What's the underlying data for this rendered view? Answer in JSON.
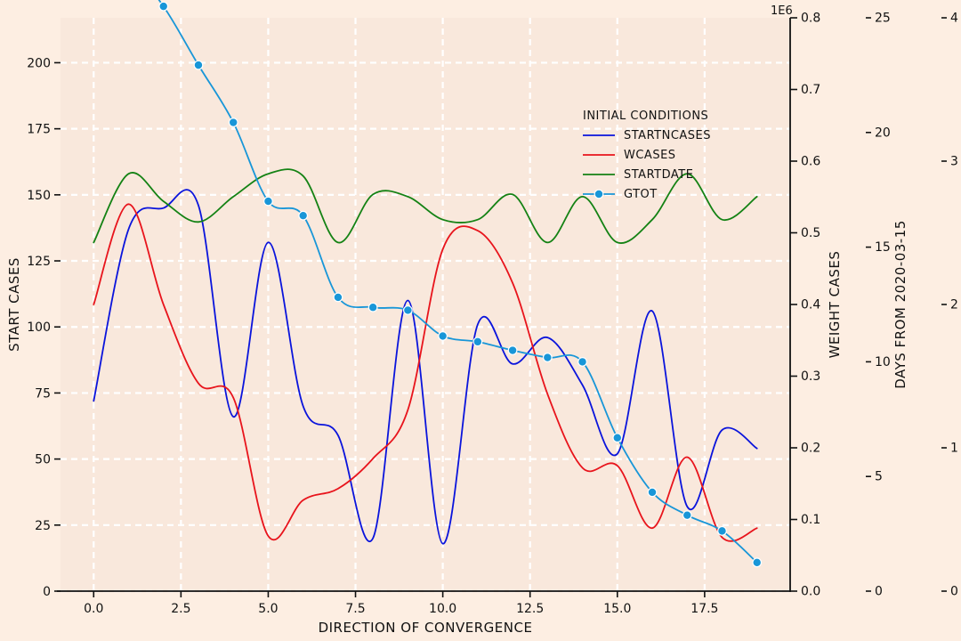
{
  "chart_data": {
    "type": "line",
    "x": [
      0,
      1,
      2,
      3,
      4,
      5,
      6,
      7,
      8,
      9,
      10,
      11,
      12,
      13,
      14,
      15,
      16,
      17,
      18,
      19
    ],
    "xlabel": "DIRECTION OF CONVERGENCE",
    "xlim": [
      -0.95,
      19.95
    ],
    "xticks": [
      "0.0",
      "2.5",
      "5.0",
      "7.5",
      "10.0",
      "12.5",
      "15.0",
      "17.5"
    ],
    "grid": true,
    "legend": {
      "title": "INITIAL CONDITIONS",
      "placement": "upper-center-right",
      "entries": [
        "STARTNCASES",
        "WCASES",
        "STARTDATE",
        "GTOT"
      ]
    },
    "axes": [
      {
        "id": "left",
        "label": "START CASES",
        "ylim": [
          0,
          217
        ],
        "ticks": [
          "0",
          "25",
          "50",
          "75",
          "100",
          "125",
          "150",
          "175",
          "200"
        ]
      },
      {
        "id": "right1",
        "label": "WEIGHT CASES",
        "offset_label": "1E6",
        "ylim": [
          0,
          0.8
        ],
        "ticks": [
          "0.0",
          "0.1",
          "0.2",
          "0.3",
          "0.4",
          "0.5",
          "0.6",
          "0.7",
          "0.8"
        ]
      },
      {
        "id": "right2",
        "label": "DAYS FROM 2020-03-15",
        "ylim": [
          0,
          25
        ],
        "ticks": [
          "0",
          "5",
          "10",
          "15",
          "20",
          "25"
        ]
      },
      {
        "id": "right3",
        "label": "GTOT",
        "ylim": [
          0,
          4
        ],
        "ticks": [
          "0",
          "1",
          "2",
          "3",
          "4"
        ]
      }
    ],
    "series": [
      {
        "name": "STARTNCASES",
        "axis": "left",
        "color": "#0a14dc",
        "markers": false,
        "values": [
          72,
          137,
          145,
          146,
          66,
          132,
          70,
          59,
          20,
          110,
          18,
          101,
          86,
          96,
          78,
          52,
          106,
          32,
          61,
          54
        ]
      },
      {
        "name": "WCASES",
        "axis": "right1",
        "color": "#e8141c",
        "markers": false,
        "values": [
          0.4,
          0.54,
          0.4,
          0.29,
          0.27,
          0.077,
          0.127,
          0.143,
          0.185,
          0.253,
          0.477,
          0.503,
          0.43,
          0.275,
          0.172,
          0.175,
          0.088,
          0.187,
          0.075,
          0.088
        ]
      },
      {
        "name": "STARTDATE",
        "axis": "right2",
        "color": "#148214",
        "markers": false,
        "values": [
          15.2,
          18.2,
          17.0,
          16.1,
          17.2,
          18.2,
          18.1,
          15.2,
          17.3,
          17.2,
          16.2,
          16.2,
          17.3,
          15.2,
          17.2,
          15.2,
          16.2,
          18.2,
          16.2,
          17.2
        ]
      },
      {
        "name": "GTOT",
        "axis": "right3",
        "color": "#1896d8",
        "markers": true,
        "values": [
          4.47,
          4.37,
          4.08,
          3.67,
          3.27,
          2.72,
          2.62,
          2.05,
          1.98,
          1.96,
          1.78,
          1.74,
          1.68,
          1.63,
          1.6,
          1.07,
          0.69,
          0.53,
          0.42,
          0.2
        ]
      }
    ]
  }
}
